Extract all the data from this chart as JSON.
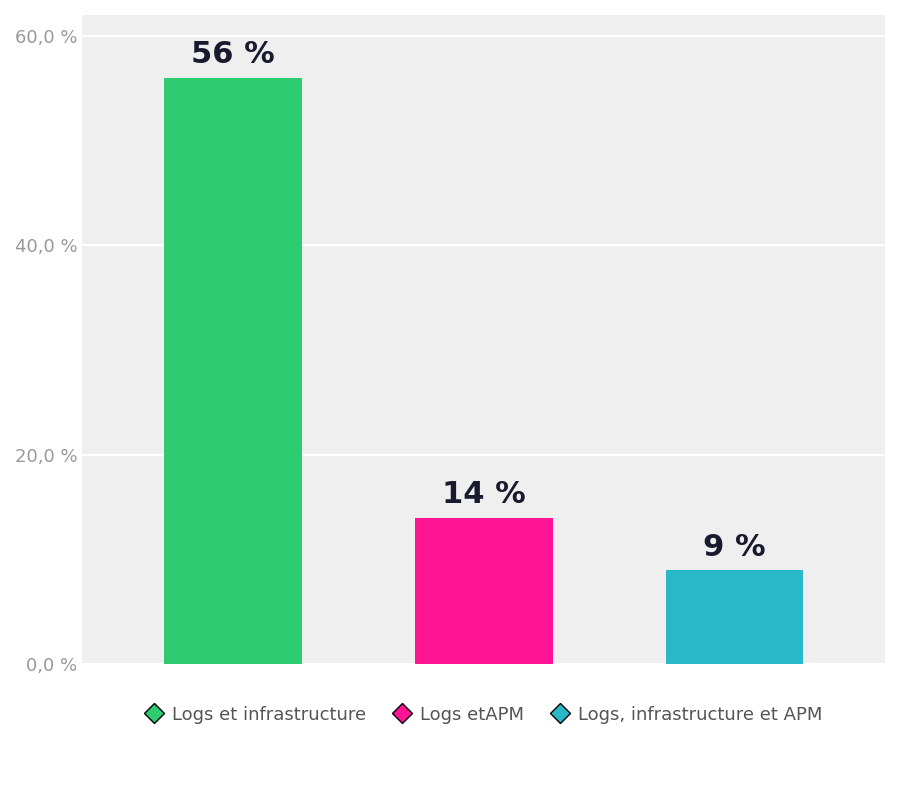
{
  "categories": [
    "Logs et infrastructure",
    "Logs etAPM",
    "Logs, infrastructure et APM"
  ],
  "values": [
    56,
    14,
    9
  ],
  "bar_colors": [
    "#2ECC71",
    "#FF1493",
    "#29B8C8"
  ],
  "legend_colors": [
    "#2ECC71",
    "#FF1493",
    "#29B8C8"
  ],
  "labels": [
    "56 %",
    "14 %",
    "9 %"
  ],
  "ylim": [
    0,
    62
  ],
  "yticks": [
    0,
    20.0,
    40.0,
    60.0
  ],
  "ytick_labels": [
    "0,0 %",
    "20,0 %",
    "40,0 %",
    "60,0 %"
  ],
  "plot_bg_color": "#efefef",
  "fig_bg_color": "#ffffff",
  "bar_width": 0.55,
  "label_fontsize": 22,
  "label_fontweight": "bold",
  "tick_fontsize": 13,
  "legend_fontsize": 13,
  "grid_color": "#ffffff",
  "label_color": "#1a1a2e",
  "tick_color": "#999999",
  "legend_text_color": "#555555"
}
